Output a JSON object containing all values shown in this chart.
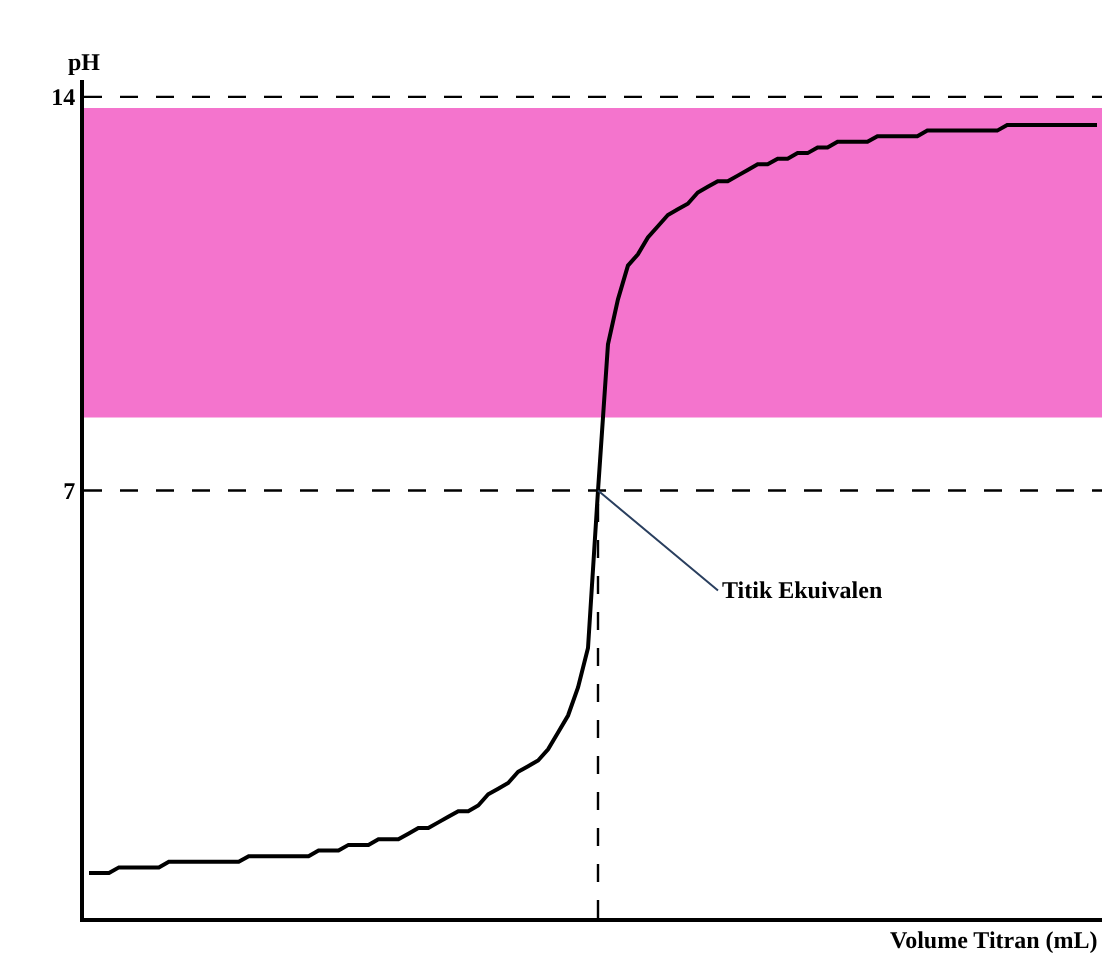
{
  "chart_data": {
    "type": "line",
    "xlabel": "Volume Titran (mL)",
    "ylabel": "pH",
    "categories": [
      null,
      null,
      null,
      null,
      null,
      null,
      null,
      null,
      null,
      null,
      null,
      null,
      null,
      null,
      null,
      null,
      null,
      null,
      null,
      null,
      null,
      null,
      null,
      null,
      null,
      null,
      null,
      null,
      null,
      null,
      null,
      null,
      null,
      null,
      null,
      null,
      null,
      null,
      null,
      null,
      null,
      null,
      null,
      null,
      null,
      null,
      null,
      null,
      null,
      null,
      null,
      null,
      null,
      null,
      null,
      null,
      null,
      null,
      null,
      null,
      null,
      null,
      null,
      null,
      null,
      null,
      null,
      null,
      null,
      null,
      null,
      null,
      null,
      null,
      null,
      null,
      null,
      null,
      null,
      null,
      null,
      null,
      null,
      null,
      null,
      null,
      null,
      null,
      null,
      null,
      null,
      null,
      null,
      null,
      null,
      null,
      null,
      null,
      null,
      null,
      null,
      null
    ],
    "series": [
      {
        "color": "#000000",
        "values": [
          0.2,
          0.2,
          0.2,
          0.3,
          0.3,
          0.3,
          0.3,
          0.3,
          0.4,
          0.4,
          0.4,
          0.4,
          0.4,
          0.4,
          0.4,
          0.4,
          0.5,
          0.5,
          0.5,
          0.5,
          0.5,
          0.5,
          0.5,
          0.6,
          0.6,
          0.6,
          0.7,
          0.7,
          0.7,
          0.8,
          0.8,
          0.8,
          0.9,
          1.0,
          1.0,
          1.1,
          1.2,
          1.3,
          1.3,
          1.4,
          1.6,
          1.7,
          1.8,
          2.0,
          2.1,
          2.2,
          2.4,
          2.7,
          3.0,
          3.5,
          4.2,
          7.0,
          9.6,
          10.4,
          11.0,
          11.2,
          11.5,
          11.7,
          11.9,
          12.0,
          12.1,
          12.3,
          12.4,
          12.5,
          12.5,
          12.6,
          12.7,
          12.8,
          12.8,
          12.9,
          12.9,
          13.0,
          13.0,
          13.1,
          13.1,
          13.2,
          13.2,
          13.2,
          13.2,
          13.3,
          13.3,
          13.3,
          13.3,
          13.3,
          13.4,
          13.4,
          13.4,
          13.4,
          13.4,
          13.4,
          13.4,
          13.4,
          13.5,
          13.5,
          13.5,
          13.5,
          13.5,
          13.5,
          13.5,
          13.5,
          13.5,
          13.5
        ]
      }
    ],
    "ylim": [
      -0.6,
      14.3
    ],
    "yticks": [
      7,
      14
    ],
    "tick_labels": "y",
    "grid": false,
    "marker": "none",
    "line_style": "solid",
    "ref_lines": [
      {
        "axis": "y",
        "value": 14,
        "line_style": "dashed",
        "color": "#000000"
      },
      {
        "axis": "y",
        "value": 7,
        "line_style": "dashed",
        "color": "#000000"
      }
    ],
    "bands": [
      {
        "axis": "y",
        "from": 8.3,
        "to": 13.8,
        "color": "#f25cc4"
      }
    ],
    "annotations": [
      "Titik Ekuivalen"
    ]
  }
}
